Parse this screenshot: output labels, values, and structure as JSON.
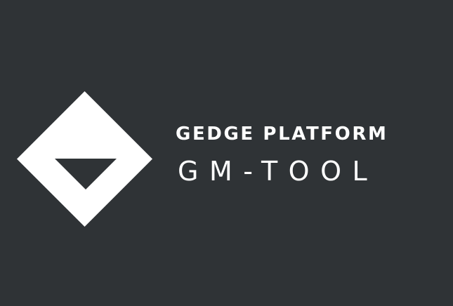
{
  "colors": {
    "background": "#2f3336",
    "foreground": "#ffffff"
  },
  "logo": {
    "icon": "diamond-with-downward-triangle-icon"
  },
  "brand": {
    "title": "GEDGE PLATFORM",
    "subtitle": "GM-TOOL"
  }
}
